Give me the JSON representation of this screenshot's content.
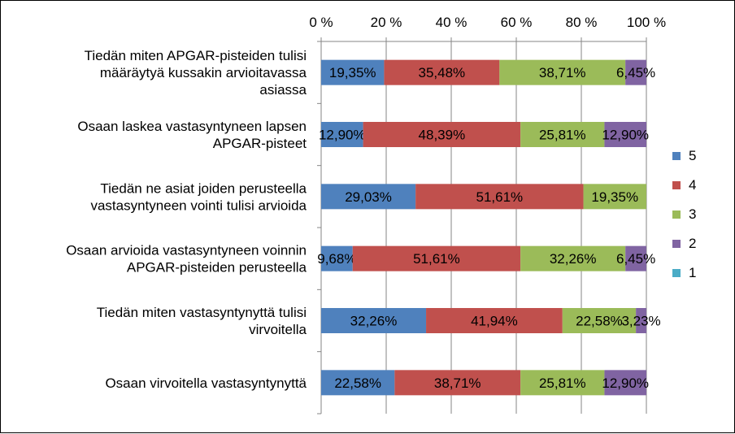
{
  "chart_data": {
    "type": "bar",
    "orientation": "horizontal",
    "stacked": "percent",
    "title": "",
    "xlabel": "",
    "ylabel": "",
    "xlim": [
      0,
      100
    ],
    "x_ticks": [
      "0 %",
      "20 %",
      "40 %",
      "60 %",
      "80 %",
      "100 %"
    ],
    "x_axis_position": "top",
    "grid": true,
    "legend_position": "right",
    "categories": [
      [
        "Tiedän miten APGAR-pisteiden tulisi",
        "määräytyä kussakin arvioitavassa",
        "asiassa"
      ],
      [
        "Osaan laskea vastasyntyneen lapsen",
        "APGAR-pisteet"
      ],
      [
        "Tiedän ne asiat joiden perusteella",
        "vastasyntyneen vointi tulisi arvioida"
      ],
      [
        "Osaan arvioida vastasyntyneen voinnin",
        "APGAR-pisteiden perusteella"
      ],
      [
        "Tiedän miten vastasyntynyttä tulisi",
        "virvoitella"
      ],
      [
        "Osaan virvoitella vastasyntynyttä"
      ]
    ],
    "series": [
      {
        "name": "5",
        "color": "#4F81BD",
        "values": [
          19.35,
          12.9,
          29.03,
          9.68,
          32.26,
          22.58
        ],
        "labels": [
          "19,35%",
          "12,90%",
          "29,03%",
          "9,68%",
          "32,26%",
          "22,58%"
        ]
      },
      {
        "name": "4",
        "color": "#C0504D",
        "values": [
          35.48,
          48.39,
          51.61,
          51.61,
          41.94,
          38.71
        ],
        "labels": [
          "35,48%",
          "48,39%",
          "51,61%",
          "51,61%",
          "41,94%",
          "38,71%"
        ]
      },
      {
        "name": "3",
        "color": "#9BBB59",
        "values": [
          38.71,
          25.81,
          19.35,
          32.26,
          22.58,
          25.81
        ],
        "labels": [
          "38,71%",
          "25,81%",
          "19,35%",
          "32,26%",
          "22,58%",
          "25,81%"
        ]
      },
      {
        "name": "2",
        "color": "#8064A2",
        "values": [
          6.45,
          12.9,
          0,
          6.45,
          3.23,
          12.9
        ],
        "labels": [
          "6,45%",
          "12,90%",
          "",
          "6,45%",
          "3,23%",
          "12,90%"
        ]
      },
      {
        "name": "1",
        "color": "#4BACC6",
        "values": [
          0,
          0,
          0,
          0,
          0,
          0
        ],
        "labels": [
          "",
          "",
          "",
          "",
          "",
          ""
        ]
      }
    ]
  }
}
